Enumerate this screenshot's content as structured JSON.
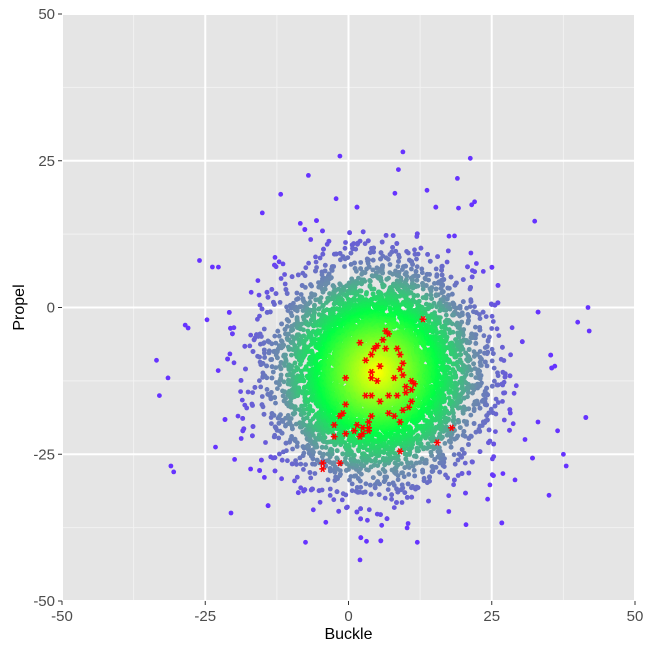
{
  "chart_data": {
    "type": "scatter",
    "title": "",
    "xlabel": "Buckle",
    "ylabel": "Propel",
    "xlim": [
      -50,
      50
    ],
    "ylim": [
      -50,
      50
    ],
    "x_ticks": [
      -50,
      -25,
      0,
      25,
      50
    ],
    "y_ticks": [
      -50,
      -25,
      0,
      25,
      50
    ],
    "x_tick_labels": [
      "-50",
      "-25",
      "0",
      "25",
      "50"
    ],
    "y_tick_labels": [
      "-50",
      "-25",
      "0",
      "25",
      "50"
    ],
    "grid": true,
    "legend": "none",
    "colors": {
      "panel_background": "#e5e5e5",
      "grid_major": "#ffffff",
      "grid_minor": "#f2f2f2",
      "center_color": "#ffff00",
      "mid_color": "#00ff44",
      "outer_color": "#6a8fa8",
      "edge_color": "#6633ff",
      "highlight_color": "#ff0000"
    },
    "series": [
      {
        "marker": "circle",
        "distribution": {
          "center": [
            5,
            -11
          ],
          "sd": [
            8.5,
            8.5
          ],
          "count": 9000,
          "seed": 7
        },
        "color_by": "distance from center (yellow to green to slate to violet)",
        "outliers": [
          [
            -1.5,
            25.8
          ],
          [
            9.5,
            26.5
          ],
          [
            -7,
            22.5
          ],
          [
            19,
            22
          ],
          [
            32.5,
            14.7
          ],
          [
            41.8,
            0
          ],
          [
            40,
            -2.5
          ],
          [
            42,
            -4
          ],
          [
            -33.5,
            -9
          ],
          [
            -31,
            -27
          ],
          [
            -30.5,
            -28
          ],
          [
            -31.5,
            -12
          ],
          [
            -33,
            -15
          ],
          [
            35,
            -32
          ],
          [
            38,
            -27
          ],
          [
            37.5,
            -25
          ],
          [
            2,
            -43
          ],
          [
            12,
            -40
          ],
          [
            -7.5,
            -40
          ],
          [
            20.5,
            -37
          ],
          [
            -20.5,
            -35
          ],
          [
            -28.5,
            -3
          ],
          [
            -28,
            -3.5
          ],
          [
            8.7,
            23.5
          ],
          [
            22,
            18
          ],
          [
            21.5,
            17.5
          ],
          [
            -26,
            8
          ],
          [
            25,
            0.5
          ],
          [
            36,
            -10
          ],
          [
            36.5,
            -21
          ]
        ]
      },
      {
        "marker": "asterisk",
        "points": [
          [
            13,
            -2
          ],
          [
            6.5,
            -4
          ],
          [
            7,
            -4.5
          ],
          [
            6,
            -5.5
          ],
          [
            2,
            -6
          ],
          [
            5,
            -6.5
          ],
          [
            4.5,
            -7
          ],
          [
            6.5,
            -7
          ],
          [
            4,
            -8
          ],
          [
            8.5,
            -7
          ],
          [
            9,
            -8
          ],
          [
            3,
            -9
          ],
          [
            5.5,
            -10
          ],
          [
            9.5,
            -9.5
          ],
          [
            9,
            -10.5
          ],
          [
            4,
            -11
          ],
          [
            9.5,
            -11.5
          ],
          [
            -0.5,
            -12
          ],
          [
            4,
            -12
          ],
          [
            5,
            -12.5
          ],
          [
            8,
            -12
          ],
          [
            11,
            -12.5
          ],
          [
            11.5,
            -13
          ],
          [
            10,
            -13.5
          ],
          [
            11,
            -14
          ],
          [
            10,
            -14.5
          ],
          [
            3,
            -15
          ],
          [
            4,
            -15
          ],
          [
            7,
            -15
          ],
          [
            8.5,
            -15
          ],
          [
            5.5,
            -16
          ],
          [
            11,
            -16
          ],
          [
            -0.5,
            -16.5
          ],
          [
            10.5,
            -17
          ],
          [
            9.5,
            -17.5
          ],
          [
            -1,
            -18
          ],
          [
            7,
            -18
          ],
          [
            -1.5,
            -18.5
          ],
          [
            4,
            -18.5
          ],
          [
            8,
            -18.5
          ],
          [
            3.5,
            -19.5
          ],
          [
            1.5,
            -20
          ],
          [
            9,
            -19.5
          ],
          [
            -2.5,
            -20
          ],
          [
            2.5,
            -20.5
          ],
          [
            3.5,
            -20.5
          ],
          [
            18,
            -20.5
          ],
          [
            1,
            -21
          ],
          [
            -0.5,
            -21.5
          ],
          [
            2.5,
            -21.5
          ],
          [
            3.5,
            -21
          ],
          [
            -2.5,
            -22
          ],
          [
            2,
            -22
          ],
          [
            15.5,
            -23
          ],
          [
            9,
            -24.5
          ],
          [
            -4.5,
            -26.5
          ],
          [
            -1.5,
            -26.5
          ],
          [
            -4.5,
            -27.5
          ]
        ]
      }
    ]
  }
}
